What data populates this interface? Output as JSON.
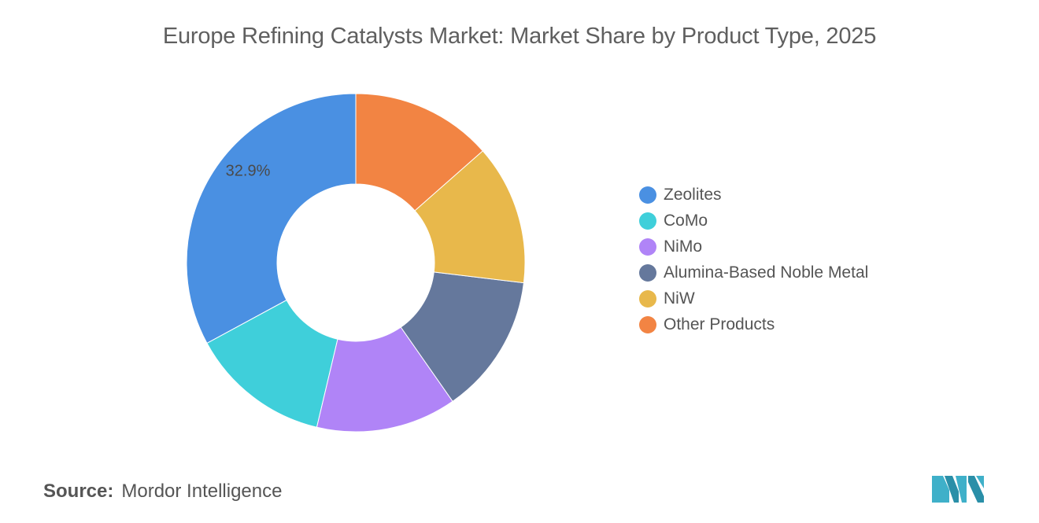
{
  "title": "Europe Refining Catalysts Market: Market Share by Product Type, 2025",
  "source": {
    "label": "Source:",
    "value": "Mordor Intelligence"
  },
  "logo": {
    "icon": "mordor-intelligence-logo",
    "color": "#3fb0c9"
  },
  "chart_data": {
    "type": "pie",
    "donut": true,
    "title": "Europe Refining Catalysts Market: Market Share by Product Type, 2025",
    "categories": [
      "Zeolites",
      "CoMo",
      "NiMo",
      "Alumina-Based Noble Metal",
      "NiW",
      "Other Products"
    ],
    "values": [
      32.9,
      13.4,
      13.4,
      13.4,
      13.4,
      13.5
    ],
    "colors": [
      "#4a90e2",
      "#3fcfda",
      "#b084f7",
      "#65789c",
      "#e8b84b",
      "#f28443"
    ],
    "data_labels": [
      {
        "category": "Zeolites",
        "text": "32.9%"
      }
    ],
    "legend_position": "right",
    "start_angle_deg": 0,
    "direction": "counterclockwise"
  }
}
